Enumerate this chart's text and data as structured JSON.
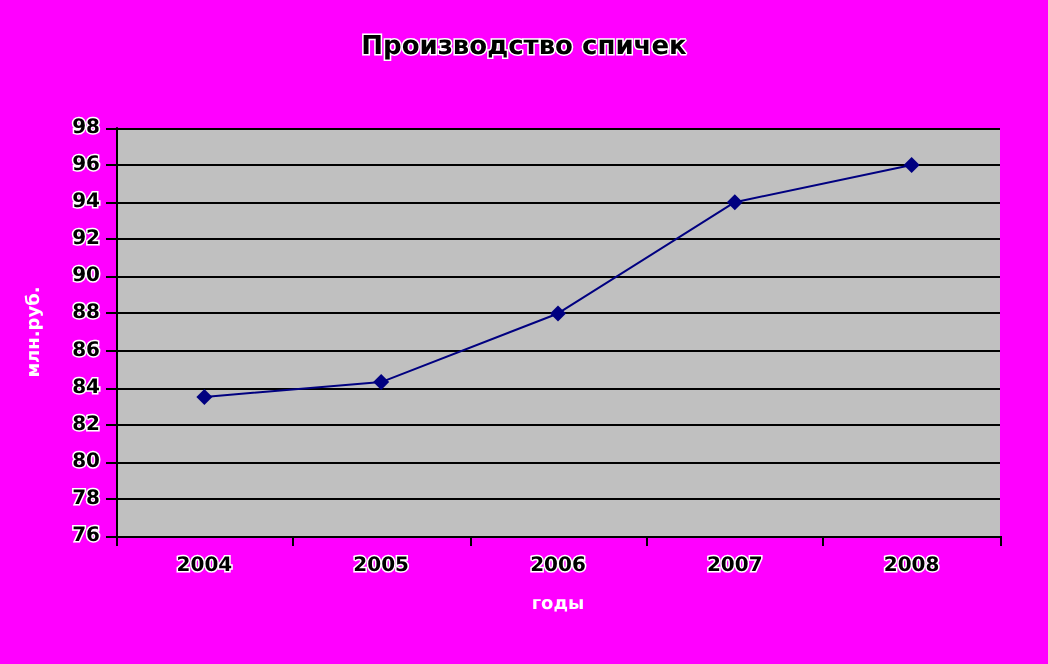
{
  "chart_data": {
    "type": "line",
    "title": "Производство спичек",
    "xlabel": "годы",
    "ylabel": "млн.руб.",
    "categories": [
      "2004",
      "2005",
      "2006",
      "2007",
      "2008"
    ],
    "series": [
      {
        "color": "#000080",
        "values": [
          83.5,
          84.3,
          88,
          94,
          96
        ]
      }
    ],
    "ylim": [
      76,
      98
    ],
    "yticks": [
      76,
      78,
      80,
      82,
      84,
      86,
      88,
      90,
      92,
      94,
      96,
      98
    ],
    "grid": "y",
    "marker": "diamond",
    "line_style": "solid"
  }
}
